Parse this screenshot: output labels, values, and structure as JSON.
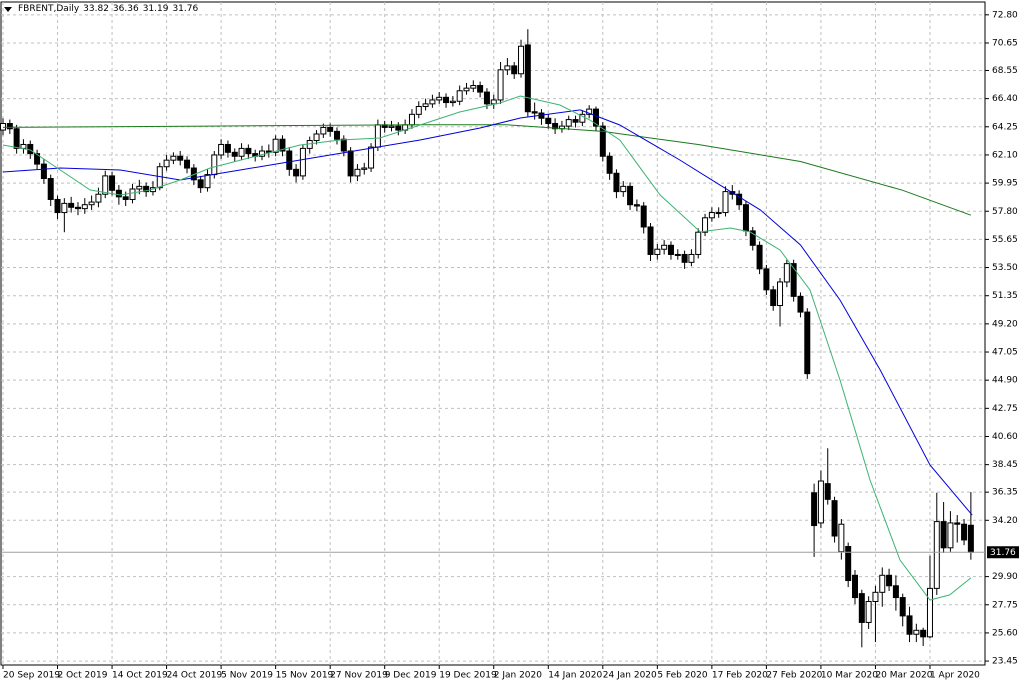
{
  "chart_data": {
    "type": "candlestick",
    "symbol": "FBRENT,Daily",
    "categories": [
      "20 Sep 2019",
      null,
      null,
      null,
      null,
      null,
      null,
      null,
      "2 Oct 2019",
      null,
      null,
      null,
      null,
      null,
      null,
      null,
      "14 Oct 2019",
      null,
      null,
      null,
      null,
      null,
      null,
      null,
      "24 Oct 2019",
      null,
      null,
      null,
      null,
      null,
      null,
      null,
      "5 Nov 2019",
      null,
      null,
      null,
      null,
      null,
      null,
      null,
      "15 Nov 2019",
      null,
      null,
      null,
      null,
      null,
      null,
      null,
      "27 Nov 2019",
      null,
      null,
      null,
      null,
      null,
      null,
      null,
      "9 Dec 2019",
      null,
      null,
      null,
      null,
      null,
      null,
      null,
      "19 Dec 2019",
      null,
      null,
      null,
      null,
      null,
      null,
      null,
      "2 Jan 2020",
      null,
      null,
      null,
      null,
      null,
      null,
      null,
      "14 Jan 2020",
      null,
      null,
      null,
      null,
      null,
      null,
      null,
      "24 Jan 2020",
      null,
      null,
      null,
      null,
      null,
      null,
      null,
      "5 Feb 2020",
      null,
      null,
      null,
      null,
      null,
      null,
      null,
      "17 Feb 2020",
      null,
      null,
      null,
      null,
      null,
      null,
      null,
      "27 Feb 2020",
      null,
      null,
      null,
      null,
      null,
      null,
      null,
      "10 Mar 2020",
      null,
      null,
      null,
      null,
      null,
      null,
      null,
      "20 Mar 2020",
      null,
      null,
      null,
      null,
      null,
      null,
      null,
      "1 Apr 2020",
      null,
      null,
      null,
      null,
      null,
      null
    ],
    "open": [
      64.0,
      64.5,
      64.1,
      62.6,
      62.9,
      62.2,
      61.4,
      60.3,
      58.7,
      57.7,
      58.4,
      58.1,
      58.0,
      58.3,
      58.5,
      59.1,
      60.5,
      59.4,
      58.9,
      58.7,
      59.5,
      59.7,
      59.3,
      59.6,
      61.2,
      61.7,
      62.0,
      61.7,
      61.1,
      60.2,
      59.6,
      60.6,
      62.1,
      62.9,
      62.3,
      62.0,
      62.6,
      62.2,
      62.0,
      62.4,
      62.3,
      63.3,
      62.4,
      61.0,
      60.5,
      62.6,
      63.2,
      63.7,
      64.2,
      63.9,
      63.3,
      62.4,
      60.5,
      61.0,
      61.1,
      62.7,
      64.4,
      64.2,
      64.3,
      64.0,
      64.4,
      65.2,
      65.8,
      66.0,
      66.3,
      66.5,
      66.1,
      66.2,
      67.0,
      67.2,
      67.4,
      66.9,
      66.0,
      66.3,
      68.6,
      68.9,
      68.3,
      70.5,
      65.4,
      65.3,
      64.9,
      64.5,
      64.1,
      64.3,
      64.8,
      64.6,
      65.2,
      65.6,
      64.3,
      62.0,
      60.7,
      59.3,
      59.7,
      58.3,
      58.2,
      56.6,
      54.5,
      54.9,
      55.2,
      54.5,
      54.5,
      53.9,
      54.5,
      56.2,
      57.3,
      57.7,
      57.7,
      59.3,
      59.1,
      58.3,
      56.3,
      55.2,
      53.4,
      51.8,
      50.6,
      52.4,
      53.8,
      51.3,
      50.1,
      36.3,
      34.0,
      37.0,
      35.7,
      31.8,
      32.2,
      30.0,
      28.6,
      26.4,
      28.0,
      28.7,
      30.0,
      29.2,
      28.3,
      26.9,
      25.5,
      25.8,
      25.3,
      29.0,
      34.1,
      32.1,
      34.0,
      33.9,
      33.82
    ],
    "high": [
      64.9,
      64.8,
      64.4,
      63.3,
      63.2,
      62.5,
      61.8,
      60.6,
      59.0,
      58.8,
      58.9,
      58.5,
      58.8,
      59.0,
      59.6,
      60.9,
      60.8,
      59.8,
      59.3,
      59.9,
      60.2,
      60.0,
      60.1,
      61.5,
      62.1,
      62.3,
      62.4,
      62.0,
      61.4,
      60.5,
      61.0,
      62.4,
      63.3,
      63.2,
      62.6,
      63.0,
      62.9,
      62.5,
      62.8,
      62.9,
      63.6,
      63.6,
      62.7,
      61.4,
      62.9,
      63.5,
      64.0,
      64.5,
      64.5,
      64.2,
      63.6,
      62.7,
      61.4,
      61.5,
      63.0,
      64.8,
      64.7,
      64.7,
      64.6,
      64.8,
      65.6,
      66.2,
      66.4,
      66.7,
      66.9,
      66.8,
      66.6,
      67.4,
      67.6,
      67.8,
      67.7,
      67.2,
      66.7,
      69.2,
      69.5,
      69.2,
      70.9,
      71.7,
      66.1,
      65.6,
      65.2,
      64.9,
      64.7,
      65.1,
      65.1,
      65.5,
      65.9,
      65.8,
      64.6,
      62.3,
      61.0,
      60.1,
      60.0,
      58.7,
      58.5,
      56.9,
      55.3,
      55.6,
      55.5,
      54.9,
      54.8,
      54.9,
      56.5,
      57.6,
      58.1,
      58.1,
      59.7,
      59.8,
      59.4,
      58.6,
      56.6,
      55.5,
      53.7,
      52.1,
      52.7,
      54.1,
      54.1,
      51.6,
      50.4,
      37.0,
      38.0,
      39.7,
      36.0,
      34.3,
      32.5,
      30.4,
      28.9,
      28.4,
      29.2,
      30.6,
      30.5,
      30.0,
      28.6,
      27.6,
      26.3,
      26.0,
      31.5,
      36.3,
      35.6,
      34.9,
      34.6,
      34.3,
      36.36
    ],
    "low": [
      63.6,
      63.7,
      62.2,
      62.2,
      61.8,
      61.0,
      59.9,
      58.2,
      57.2,
      56.2,
      57.7,
      57.5,
      57.6,
      57.9,
      58.1,
      58.8,
      59.0,
      58.3,
      58.2,
      58.4,
      59.1,
      58.9,
      59.0,
      59.4,
      60.9,
      61.4,
      61.3,
      60.7,
      59.8,
      59.2,
      59.3,
      60.3,
      61.8,
      61.9,
      61.6,
      61.7,
      61.8,
      61.6,
      61.7,
      61.9,
      62.0,
      62.0,
      60.5,
      60.0,
      60.2,
      62.2,
      62.9,
      63.4,
      63.5,
      62.9,
      62.0,
      60.0,
      60.1,
      60.6,
      60.8,
      62.4,
      63.8,
      63.9,
      63.6,
      63.7,
      64.1,
      64.9,
      65.5,
      65.7,
      66.0,
      65.7,
      65.8,
      65.9,
      66.7,
      66.9,
      66.5,
      65.6,
      65.6,
      66.0,
      68.2,
      67.9,
      68.0,
      65.0,
      64.8,
      64.4,
      64.1,
      63.7,
      63.8,
      64.0,
      64.2,
      64.3,
      64.9,
      63.9,
      61.6,
      60.2,
      58.8,
      58.9,
      57.9,
      57.8,
      56.1,
      54.0,
      54.1,
      54.5,
      54.1,
      54.1,
      53.4,
      53.6,
      54.2,
      55.9,
      57.0,
      57.3,
      57.4,
      58.7,
      57.9,
      55.9,
      54.8,
      53.0,
      51.4,
      50.2,
      49.0,
      52.0,
      50.9,
      49.7,
      45.0,
      31.4,
      33.6,
      35.4,
      32.5,
      31.2,
      29.1,
      27.8,
      24.5,
      25.9,
      24.9,
      27.6,
      28.8,
      27.3,
      26.1,
      24.9,
      24.9,
      24.6,
      25.2,
      28.5,
      31.7,
      31.8,
      32.5,
      32.3,
      31.19
    ],
    "close": [
      64.5,
      64.1,
      62.6,
      62.9,
      62.2,
      61.4,
      60.3,
      58.7,
      57.7,
      58.4,
      58.1,
      58.0,
      58.3,
      58.5,
      59.1,
      60.5,
      59.4,
      58.9,
      58.7,
      59.5,
      59.7,
      59.3,
      59.6,
      61.2,
      61.7,
      62.0,
      61.7,
      61.1,
      60.2,
      59.6,
      60.6,
      62.1,
      62.9,
      62.3,
      62.0,
      62.6,
      62.2,
      62.0,
      62.4,
      62.3,
      63.3,
      62.4,
      61.0,
      60.5,
      62.6,
      63.2,
      63.7,
      64.2,
      63.9,
      63.3,
      62.4,
      60.5,
      61.0,
      61.1,
      62.7,
      64.4,
      64.2,
      64.3,
      64.0,
      64.4,
      65.2,
      65.8,
      66.0,
      66.3,
      66.5,
      66.1,
      66.2,
      67.0,
      67.2,
      67.4,
      66.9,
      66.0,
      66.3,
      68.6,
      68.9,
      68.3,
      70.4,
      65.4,
      65.3,
      64.9,
      64.5,
      64.1,
      64.3,
      64.8,
      64.6,
      65.2,
      65.6,
      64.3,
      62.0,
      60.7,
      59.3,
      59.7,
      58.3,
      58.2,
      56.6,
      54.5,
      54.9,
      55.2,
      54.5,
      54.5,
      53.9,
      54.5,
      56.2,
      57.3,
      57.7,
      57.7,
      59.3,
      59.1,
      58.3,
      56.3,
      55.2,
      53.4,
      51.8,
      50.6,
      52.4,
      53.8,
      51.3,
      50.1,
      45.4,
      33.8,
      37.2,
      35.8,
      33.0,
      33.9,
      29.6,
      28.3,
      26.4,
      28.0,
      28.7,
      30.0,
      29.2,
      28.3,
      26.9,
      25.5,
      25.8,
      25.3,
      29.0,
      34.1,
      32.1,
      34.0,
      33.9,
      32.7,
      31.76
    ],
    "up_color": "#ffffff",
    "down_color": "#000000",
    "series": [
      {
        "color": "#1a7a1a",
        "x": [
          0,
          30,
          60,
          74,
          88,
          102,
          117,
          132,
          142
        ],
        "values": [
          64.2,
          64.3,
          64.4,
          64.4,
          63.9,
          62.9,
          61.6,
          59.4,
          57.5
        ]
      },
      {
        "color": "#0000dd",
        "x": [
          0,
          8.4,
          17.2,
          26,
          34.8,
          43.6,
          52.4,
          61.2,
          70,
          75.9,
          84.7,
          90.5,
          99.3,
          105.2,
          111.1,
          117,
          122.8,
          128.7,
          136,
          142.2
        ],
        "values": [
          60.8,
          61.1,
          60.95,
          60.19,
          60.95,
          61.71,
          62.48,
          63.24,
          64.16,
          64.92,
          65.54,
          64.39,
          61.71,
          59.8,
          57.9,
          55.22,
          51.02,
          45.68,
          38.42,
          34.6
        ]
      },
      {
        "color": "#3cb371",
        "x": [
          0,
          4,
          8.4,
          12.8,
          17.2,
          21.6,
          26,
          30.4,
          37.7,
          43.6,
          49.4,
          55.3,
          61.2,
          67,
          72.9,
          75.9,
          81.7,
          86.1,
          90.5,
          96.4,
          102.3,
          106.7,
          109.6,
          114,
          118.4,
          122.8,
          127.2,
          131.6,
          136,
          138.9,
          142
        ],
        "values": [
          62.86,
          62.48,
          60.95,
          59.42,
          59.04,
          59.42,
          60.19,
          61.1,
          62.09,
          62.86,
          63.24,
          63.39,
          64.39,
          65.38,
          66.07,
          66.6,
          65.91,
          64.77,
          63.24,
          59.04,
          56.22,
          56.52,
          56.22,
          54.84,
          51.79,
          44.91,
          37.28,
          31.17,
          28.11,
          28.5,
          29.8
        ]
      }
    ],
    "ylim": [
      23.15,
      73.55
    ],
    "yticks": [
      {
        "value": 23.45,
        "label": "23.45"
      },
      {
        "value": 25.6,
        "label": "25.60"
      },
      {
        "value": 27.75,
        "label": "27.75"
      },
      {
        "value": 29.9,
        "label": "29.90"
      },
      {
        "value": 34.2,
        "label": "34.20"
      },
      {
        "value": 36.35,
        "label": "36.35"
      },
      {
        "value": 38.45,
        "label": "38.45"
      },
      {
        "value": 40.6,
        "label": "40.60"
      },
      {
        "value": 42.75,
        "label": "42.75"
      },
      {
        "value": 44.9,
        "label": "44.90"
      },
      {
        "value": 47.05,
        "label": "47.05"
      },
      {
        "value": 49.2,
        "label": "49.20"
      },
      {
        "value": 51.35,
        "label": "51.35"
      },
      {
        "value": 53.5,
        "label": "53.50"
      },
      {
        "value": 55.65,
        "label": "55.65"
      },
      {
        "value": 57.8,
        "label": "57.80"
      },
      {
        "value": 59.95,
        "label": "59.95"
      },
      {
        "value": 62.1,
        "label": "62.10"
      },
      {
        "value": 64.25,
        "label": "64.25"
      },
      {
        "value": 66.4,
        "label": "66.40"
      },
      {
        "value": 68.55,
        "label": "68.55"
      },
      {
        "value": 70.65,
        "label": "70.65"
      },
      {
        "value": 72.8,
        "label": "72.80"
      }
    ],
    "grid": true
  }
}
